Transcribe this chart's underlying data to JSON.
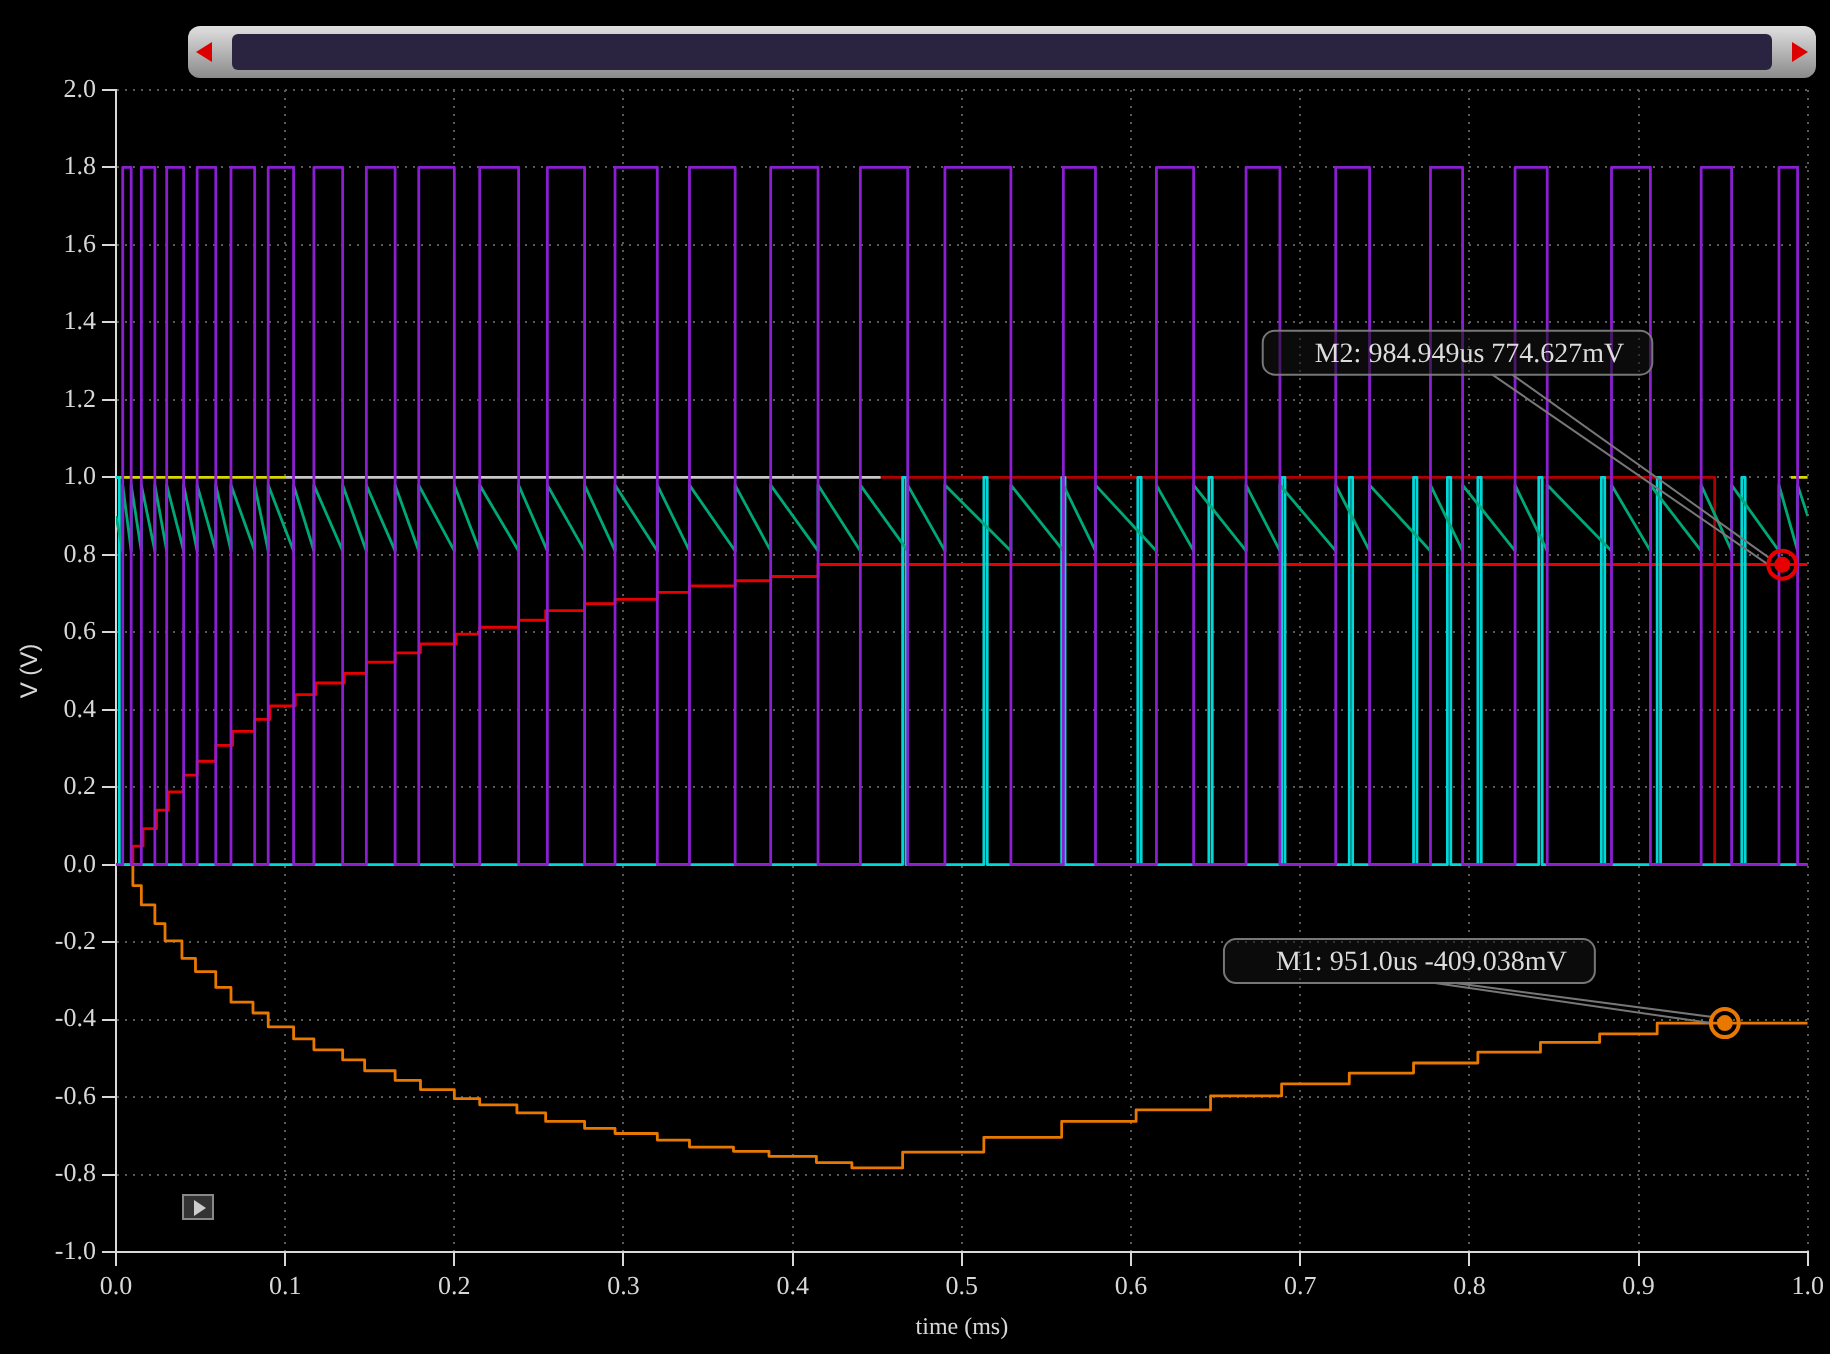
{
  "chart_data": {
    "type": "line",
    "xlabel": "time (ms)",
    "ylabel": "V (V)",
    "xlim": [
      0,
      1.0
    ],
    "ylim": [
      -1.0,
      2.0
    ],
    "xticks": [
      {
        "value": 0,
        "label": "0.0"
      },
      0.1,
      0.2,
      0.3,
      0.4,
      0.5,
      0.6,
      0.7,
      0.8,
      0.9,
      {
        "value": 1,
        "label": "1.0"
      }
    ],
    "yticks": [
      {
        "value": -1,
        "label": "-1.0"
      },
      -0.8,
      -0.6,
      -0.4,
      -0.2,
      {
        "value": 0,
        "label": "0.0"
      },
      0.2,
      0.4,
      0.6,
      0.8,
      {
        "value": 1,
        "label": "1.0"
      },
      1.2,
      1.4,
      1.6,
      1.8,
      {
        "value": 2,
        "label": "2.0"
      }
    ],
    "grid": true,
    "marker": "none",
    "line_style": "solid",
    "series": [
      {
        "type": "step",
        "color": "#8a1fd0",
        "x": [
          0,
          0.004,
          0.009,
          0.015,
          0.023,
          0.03,
          0.04,
          0.048,
          0.059,
          0.068,
          0.082,
          0.09,
          0.105,
          0.117,
          0.134,
          0.148,
          0.165,
          0.179,
          0.2,
          0.215,
          0.238,
          0.255,
          0.277,
          0.295,
          0.32,
          0.339,
          0.366,
          0.387,
          0.415,
          0.44,
          0.468,
          0.49,
          0.529,
          0.56,
          0.579,
          0.615,
          0.637,
          0.668,
          0.688,
          0.721,
          0.741,
          0.777,
          0.796,
          0.827,
          0.846,
          0.884,
          0.907,
          0.937,
          0.955,
          0.983,
          0.994,
          1.0
        ],
        "values": [
          0,
          1.8,
          0,
          1.8,
          0,
          1.8,
          0,
          1.8,
          0,
          1.8,
          0,
          1.8,
          0,
          1.8,
          0,
          1.8,
          0,
          1.8,
          0,
          1.8,
          0,
          1.8,
          0,
          1.8,
          0,
          1.8,
          0,
          1.8,
          0,
          1.8,
          0,
          1.8,
          0,
          1.8,
          0,
          1.8,
          0,
          1.8,
          0,
          1.8,
          0,
          1.8,
          0,
          1.8,
          0,
          1.8,
          0,
          1.8,
          0,
          1.8,
          0,
          0
        ]
      },
      {
        "color": "#00a878",
        "x": [
          0,
          0.004,
          0.004,
          0.009,
          0.009,
          0.015,
          0.015,
          0.023,
          0.023,
          0.03,
          0.03,
          0.04,
          0.04,
          0.048,
          0.048,
          0.059,
          0.059,
          0.068,
          0.068,
          0.082,
          0.082,
          0.09,
          0.09,
          0.105,
          0.105,
          0.117,
          0.117,
          0.134,
          0.134,
          0.148,
          0.148,
          0.165,
          0.165,
          0.179,
          0.179,
          0.2,
          0.2,
          0.215,
          0.215,
          0.238,
          0.238,
          0.255,
          0.255,
          0.277,
          0.277,
          0.295,
          0.295,
          0.32,
          0.32,
          0.339,
          0.339,
          0.366,
          0.366,
          0.387,
          0.387,
          0.415,
          0.415,
          0.44,
          0.44,
          0.468,
          0.468,
          0.49,
          0.49,
          0.529,
          0.529,
          0.56,
          0.56,
          0.579,
          0.579,
          0.615,
          0.615,
          0.637,
          0.637,
          0.668,
          0.668,
          0.688,
          0.688,
          0.721,
          0.721,
          0.741,
          0.741,
          0.777,
          0.777,
          0.796,
          0.796,
          0.827,
          0.827,
          0.846,
          0.846,
          0.884,
          0.884,
          0.907,
          0.907,
          0.937,
          0.937,
          0.955,
          0.955,
          0.983,
          0.983,
          0.994,
          0.994,
          1.0
        ],
        "values": [
          0.9,
          0.81,
          0.98,
          0.81,
          0.98,
          0.81,
          0.98,
          0.81,
          0.98,
          0.81,
          0.98,
          0.81,
          0.98,
          0.81,
          0.98,
          0.81,
          0.98,
          0.81,
          0.98,
          0.81,
          0.98,
          0.81,
          0.98,
          0.81,
          0.98,
          0.81,
          0.98,
          0.81,
          0.98,
          0.81,
          0.98,
          0.81,
          0.98,
          0.81,
          0.98,
          0.81,
          0.98,
          0.81,
          0.98,
          0.81,
          0.98,
          0.81,
          0.98,
          0.81,
          0.98,
          0.81,
          0.98,
          0.81,
          0.98,
          0.81,
          0.98,
          0.81,
          0.98,
          0.81,
          0.98,
          0.81,
          0.98,
          0.81,
          0.98,
          0.81,
          0.98,
          0.81,
          0.98,
          0.81,
          0.98,
          0.81,
          0.98,
          0.81,
          0.98,
          0.81,
          0.98,
          0.81,
          0.98,
          0.81,
          0.98,
          0.81,
          0.98,
          0.81,
          0.98,
          0.81,
          0.98,
          0.81,
          0.98,
          0.81,
          0.98,
          0.81,
          0.98,
          0.81,
          0.98,
          0.81,
          0.98,
          0.81,
          0.98,
          0.81,
          0.98,
          0.81,
          0.98,
          0.81,
          0.98,
          0.81,
          0.98,
          0.9
        ]
      },
      {
        "type": "step",
        "color": "#00d8d8",
        "x": [
          0,
          0.002,
          0.465,
          0.467,
          0.513,
          0.515,
          0.559,
          0.561,
          0.604,
          0.606,
          0.646,
          0.648,
          0.689,
          0.691,
          0.729,
          0.731,
          0.767,
          0.769,
          0.787,
          0.789,
          0.805,
          0.807,
          0.841,
          0.843,
          0.878,
          0.88,
          0.911,
          0.913,
          0.961,
          0.963,
          1.0
        ],
        "values": [
          1.0,
          0,
          1.0,
          0,
          1.0,
          0,
          1.0,
          0,
          1.0,
          0,
          1.0,
          0,
          1.0,
          0,
          1.0,
          0,
          1.0,
          0,
          1.0,
          0,
          1.0,
          0,
          1.0,
          0,
          1.0,
          0,
          1.0,
          0,
          1.0,
          0,
          0
        ]
      },
      {
        "type": "step",
        "color": "#c8c8c8",
        "x": [
          0.1,
          0.452
        ],
        "values": [
          1.0,
          1.0
        ]
      },
      {
        "type": "step",
        "color": "#d8d800",
        "x": [
          0,
          0.1
        ],
        "values": [
          1.0,
          1.0
        ]
      },
      {
        "type": "step",
        "color": "#d8d800",
        "x": [
          0.99,
          1.0
        ],
        "values": [
          1.0,
          1.0
        ]
      },
      {
        "type": "step",
        "color": "#b00000",
        "x": [
          0.452,
          0.945,
          1.0
        ],
        "values": [
          1.0,
          0,
          0
        ]
      },
      {
        "type": "step",
        "color": "#e80000",
        "x": [
          0,
          0.01,
          0.016,
          0.024,
          0.031,
          0.04,
          0.048,
          0.059,
          0.069,
          0.082,
          0.091,
          0.106,
          0.118,
          0.135,
          0.148,
          0.165,
          0.18,
          0.201,
          0.215,
          0.238,
          0.254,
          0.277,
          0.295,
          0.32,
          0.339,
          0.366,
          0.387,
          0.415,
          1.0
        ],
        "values": [
          0,
          0.048,
          0.093,
          0.141,
          0.188,
          0.231,
          0.267,
          0.308,
          0.344,
          0.375,
          0.41,
          0.439,
          0.469,
          0.494,
          0.523,
          0.547,
          0.57,
          0.595,
          0.613,
          0.631,
          0.656,
          0.674,
          0.685,
          0.703,
          0.72,
          0.733,
          0.744,
          0.775,
          0.775
        ]
      },
      {
        "type": "step",
        "color": "#e87800",
        "x": [
          0,
          0.01,
          0.015,
          0.023,
          0.029,
          0.039,
          0.047,
          0.059,
          0.068,
          0.081,
          0.09,
          0.105,
          0.117,
          0.134,
          0.147,
          0.165,
          0.18,
          0.2,
          0.215,
          0.237,
          0.254,
          0.277,
          0.295,
          0.32,
          0.339,
          0.365,
          0.386,
          0.414,
          0.435,
          0.465,
          0.513,
          0.559,
          0.603,
          0.647,
          0.689,
          0.729,
          0.767,
          0.805,
          0.842,
          0.877,
          0.911,
          1.0
        ],
        "values": [
          0,
          -0.054,
          -0.104,
          -0.152,
          -0.197,
          -0.242,
          -0.276,
          -0.317,
          -0.355,
          -0.383,
          -0.419,
          -0.45,
          -0.478,
          -0.504,
          -0.532,
          -0.557,
          -0.581,
          -0.604,
          -0.62,
          -0.641,
          -0.663,
          -0.681,
          -0.694,
          -0.711,
          -0.729,
          -0.74,
          -0.753,
          -0.769,
          -0.783,
          -0.742,
          -0.704,
          -0.663,
          -0.633,
          -0.597,
          -0.566,
          -0.538,
          -0.512,
          -0.484,
          -0.459,
          -0.437,
          -0.409,
          -0.409
        ]
      }
    ],
    "annotations": [
      {
        "text": "M1: 951.0us -409.038mV",
        "x": 0.951,
        "y": -0.409
      },
      {
        "text": "M2: 984.949us 774.627mV",
        "x": 0.984949,
        "y": 0.774627
      }
    ]
  }
}
